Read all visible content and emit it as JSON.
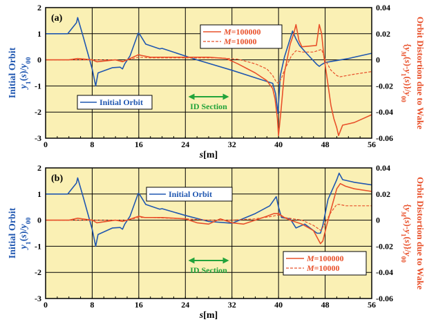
{
  "colors": {
    "panel_bg": "#FAF0B4",
    "initial": "#1F56B0",
    "wake": "#E8502A",
    "grid": "#000000",
    "annotation": "#22A33A"
  },
  "chart_data": [
    {
      "type": "line",
      "panel": "(a)",
      "xlabel": "s[m]",
      "ylabel_left": [
        "Initial Orbit",
        "y1(s)/y00"
      ],
      "ylabel_right": [
        "Orbit Distortion due to Wake",
        "{yM(s)-y1(s)}/y00"
      ],
      "xlim": [
        0,
        56
      ],
      "ylim_left": [
        -3,
        2
      ],
      "ylim_right": [
        -0.06,
        0.04
      ],
      "xticks": [
        0,
        8,
        16,
        24,
        32,
        40,
        48,
        56
      ],
      "yticks_left": [
        -3,
        -2,
        -1,
        0,
        1,
        2
      ],
      "yticks_right": [
        -0.06,
        -0.04,
        -0.02,
        0,
        0.02,
        0.04
      ],
      "grid": true,
      "annotation": "ID Section",
      "annotation_range": [
        24.5,
        31.5
      ],
      "legend_left": {
        "entries": [
          "Initial Orbit"
        ],
        "placement": "middle-left"
      },
      "legend_right": {
        "entries": [
          "M=100000",
          "M=10000"
        ],
        "placement": "top-center"
      },
      "series": [
        {
          "name": "Initial Orbit",
          "axis": "left",
          "style": "solid",
          "x": [
            0,
            3.8,
            5.3,
            5.5,
            6.5,
            8.0,
            8.6,
            9.0,
            11.5,
            12.8,
            13.2,
            13.6,
            14.5,
            15.9,
            16.1,
            17.2,
            19.6,
            20.0,
            26.0,
            32.0,
            39.0,
            39.5,
            39.9,
            40.3,
            41.0,
            42.4,
            43.0,
            43.6,
            45.0,
            46.6,
            47.0,
            47.4,
            48.0,
            52.0,
            56.0
          ],
          "y": [
            1.0,
            1.0,
            1.42,
            1.62,
            0.85,
            -0.35,
            -1.0,
            -0.5,
            -0.3,
            -0.28,
            -0.35,
            -0.15,
            0.15,
            1.02,
            1.0,
            0.6,
            0.42,
            0.44,
            0.0,
            -0.4,
            -0.9,
            -1.3,
            -2.05,
            -0.6,
            0.1,
            1.1,
            0.8,
            0.55,
            0.2,
            -0.18,
            -0.25,
            -0.18,
            -0.1,
            0.05,
            0.25
          ]
        },
        {
          "name": "M=100000",
          "axis": "right",
          "style": "solid",
          "x": [
            0,
            4,
            5.5,
            8,
            8.8,
            12,
            13.2,
            14,
            16,
            16.3,
            18,
            22,
            28,
            31,
            33,
            36,
            38,
            39,
            39.4,
            39.8,
            40.0,
            40.4,
            41,
            42.0,
            42.6,
            43.0,
            43.5,
            44,
            46.5,
            47.0,
            47.4,
            47.8,
            48.2,
            49,
            49.5,
            50.0,
            50.3,
            51,
            53,
            56
          ],
          "y": [
            0.0,
            0.0,
            0.001,
            0.0,
            -0.0015,
            0.0,
            -0.0015,
            0.0,
            0.004,
            0.0035,
            0.002,
            0.002,
            0.002,
            0.001,
            -0.003,
            -0.01,
            -0.016,
            -0.022,
            -0.03,
            -0.045,
            -0.058,
            -0.04,
            -0.01,
            0.012,
            0.02,
            0.027,
            0.015,
            0.01,
            0.011,
            0.027,
            0.02,
            0.002,
            -0.01,
            -0.035,
            -0.045,
            -0.052,
            -0.058,
            -0.05,
            -0.048,
            -0.042
          ]
        },
        {
          "name": "M=10000",
          "axis": "right",
          "style": "dashed",
          "x": [
            0,
            8,
            12,
            13.2,
            14,
            16,
            18,
            24,
            30,
            33,
            36,
            38,
            39.0,
            39.6,
            40.0,
            40.5,
            41.0,
            42.2,
            43.0,
            44.0,
            46.0,
            47.4,
            48.0,
            49.0,
            50.0,
            50.5,
            53,
            56
          ],
          "y": [
            0.0,
            0.0,
            0.0,
            -0.001,
            0.0,
            0.002,
            0.0015,
            0.0015,
            0.0015,
            0.0005,
            -0.003,
            -0.007,
            -0.012,
            -0.017,
            -0.018,
            -0.014,
            -0.008,
            0.003,
            0.007,
            0.006,
            0.006,
            0.008,
            0.0,
            -0.008,
            -0.012,
            -0.013,
            -0.011,
            -0.009
          ]
        }
      ]
    },
    {
      "type": "line",
      "panel": "(b)",
      "xlabel": "s[m]",
      "ylabel_left": [
        "Initial Orbit",
        "y1(s)/y00"
      ],
      "ylabel_right": [
        "Orbit Distortion due to Wake",
        "{yM(s)-y1(s)}/y00"
      ],
      "xlim": [
        0,
        56
      ],
      "ylim_left": [
        -3,
        2
      ],
      "ylim_right": [
        -0.06,
        0.04
      ],
      "xticks": [
        0,
        8,
        16,
        24,
        32,
        40,
        48,
        56
      ],
      "yticks_left": [
        -3,
        -2,
        -1,
        0,
        1,
        2
      ],
      "yticks_right": [
        -0.06,
        -0.04,
        -0.02,
        0,
        0.02,
        0.04
      ],
      "grid": true,
      "annotation": "ID Section",
      "annotation_range": [
        24.5,
        31.5
      ],
      "legend_left": {
        "entries": [
          "Initial Orbit"
        ],
        "placement": "top-center"
      },
      "legend_right": {
        "entries": [
          "M=100000",
          "M=10000"
        ],
        "placement": "bottom-right"
      },
      "series": [
        {
          "name": "Initial Orbit",
          "axis": "left",
          "style": "solid",
          "x": [
            0,
            3.8,
            5.3,
            5.5,
            6.5,
            8.0,
            8.6,
            9.0,
            11.5,
            12.8,
            13.2,
            13.6,
            14.5,
            15.9,
            16.1,
            17.2,
            19.6,
            20.0,
            24.0,
            28.0,
            32.0,
            36.0,
            38.5,
            39.6,
            40.0,
            40.5,
            42.0,
            43.0,
            44.5,
            46.6,
            47.2,
            47.6,
            48.5,
            50.0,
            50.4,
            51.0,
            53.0,
            56.0
          ],
          "y": [
            1.0,
            1.0,
            1.42,
            1.62,
            0.85,
            -0.35,
            -1.0,
            -0.55,
            -0.3,
            -0.28,
            -0.35,
            -0.15,
            0.15,
            1.02,
            1.0,
            0.6,
            0.42,
            0.44,
            0.18,
            -0.05,
            -0.12,
            0.25,
            0.55,
            0.9,
            0.5,
            0.1,
            0.05,
            -0.3,
            -0.15,
            -0.5,
            -0.5,
            -0.2,
            0.8,
            1.55,
            1.8,
            1.55,
            1.45,
            1.35
          ]
        },
        {
          "name": "M=100000",
          "axis": "right",
          "style": "solid",
          "x": [
            0,
            4,
            5.5,
            8,
            8.8,
            12,
            13.2,
            14,
            16,
            17,
            20,
            24,
            26,
            28,
            30,
            32,
            34,
            36,
            38,
            39.2,
            40.0,
            41.0,
            42,
            44,
            46,
            47.2,
            47.6,
            48.2,
            49,
            50.0,
            50.6,
            51.5,
            53,
            56
          ],
          "y": [
            0.0,
            0.0,
            0.0015,
            0.0,
            -0.002,
            0.0,
            -0.001,
            0.0,
            0.003,
            0.002,
            0.002,
            0.001,
            -0.002,
            -0.003,
            0.001,
            -0.002,
            -0.003,
            0.0,
            0.003,
            0.005,
            0.005,
            0.002,
            0.0,
            -0.003,
            -0.008,
            -0.018,
            -0.016,
            -0.005,
            0.008,
            0.024,
            0.028,
            0.026,
            0.024,
            0.022
          ]
        },
        {
          "name": "M=10000",
          "axis": "right",
          "style": "dashed",
          "x": [
            0,
            8,
            12,
            14,
            16,
            18,
            24,
            28,
            32,
            36,
            39,
            40,
            41,
            44,
            46,
            47.3,
            48,
            49,
            50,
            50.5,
            51.5,
            56
          ],
          "y": [
            0.0,
            0.0,
            0.0,
            0.0,
            0.002,
            0.002,
            0.001,
            0.0,
            0.0,
            0.001,
            0.003,
            0.004,
            0.002,
            0.0,
            -0.004,
            -0.008,
            -0.002,
            0.006,
            0.012,
            0.012,
            0.011,
            0.011
          ]
        }
      ]
    }
  ]
}
